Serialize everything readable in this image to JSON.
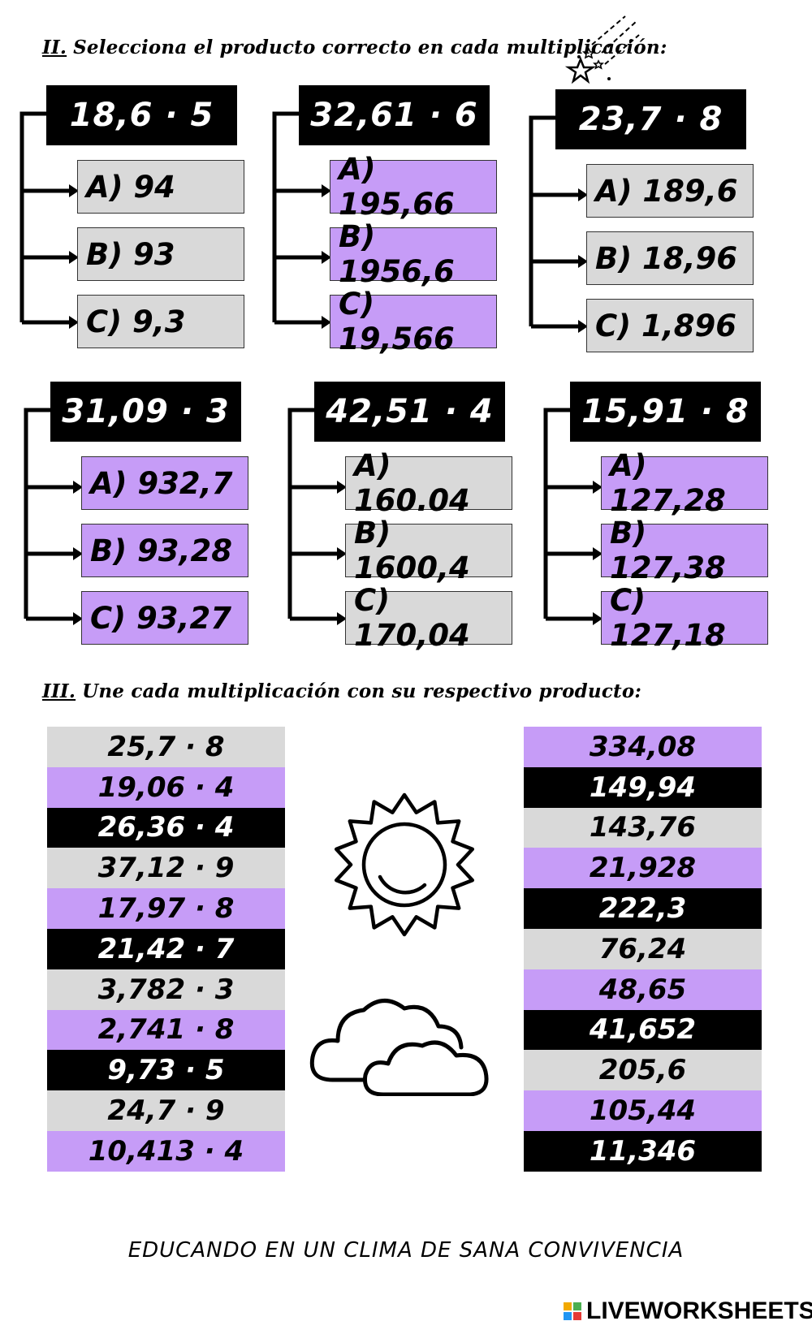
{
  "section2": {
    "number": "II.",
    "title": "Selecciona el producto correcto en cada multiplicación:"
  },
  "groups": [
    {
      "problem": "18,6 · 5",
      "color": "gray",
      "options": [
        "A) 94",
        "B) 93",
        "C) 9,3"
      ]
    },
    {
      "problem": "32,61 · 6",
      "color": "purple",
      "options": [
        "A) 195,66",
        "B) 1956,6",
        "C) 19,566"
      ]
    },
    {
      "problem": "23,7 · 8",
      "color": "gray",
      "options": [
        "A) 189,6",
        "B) 18,96",
        "C) 1,896"
      ]
    },
    {
      "problem": "31,09 · 3",
      "color": "purple",
      "options": [
        "A) 932,7",
        "B) 93,28",
        "C) 93,27"
      ]
    },
    {
      "problem": "42,51 · 4",
      "color": "gray",
      "options": [
        "A) 160.04",
        "B) 1600,4",
        "C) 170,04"
      ]
    },
    {
      "problem": "15,91 · 8",
      "color": "purple",
      "options": [
        "A) 127,28",
        "B) 127,38",
        "C) 127,18"
      ]
    }
  ],
  "section3": {
    "number": "III.",
    "title": "Une cada multiplicación con su respectivo producto:"
  },
  "left_column": [
    {
      "text": "25,7 · 8",
      "color": "gray"
    },
    {
      "text": "19,06 · 4",
      "color": "purple"
    },
    {
      "text": "26,36 · 4",
      "color": "black"
    },
    {
      "text": "37,12 · 9",
      "color": "gray"
    },
    {
      "text": "17,97 · 8",
      "color": "purple"
    },
    {
      "text": "21,42 · 7",
      "color": "black"
    },
    {
      "text": "3,782 · 3",
      "color": "gray"
    },
    {
      "text": "2,741 · 8",
      "color": "purple"
    },
    {
      "text": "9,73 · 5",
      "color": "black"
    },
    {
      "text": "24,7 · 9",
      "color": "gray"
    },
    {
      "text": "10,413 · 4",
      "color": "purple"
    }
  ],
  "right_column": [
    {
      "text": "334,08",
      "color": "purple"
    },
    {
      "text": "149,94",
      "color": "black"
    },
    {
      "text": "143,76",
      "color": "gray"
    },
    {
      "text": "21,928",
      "color": "purple"
    },
    {
      "text": "222,3",
      "color": "black"
    },
    {
      "text": "76,24",
      "color": "gray"
    },
    {
      "text": "48,65",
      "color": "purple"
    },
    {
      "text": "41,652",
      "color": "black"
    },
    {
      "text": "205,6",
      "color": "gray"
    },
    {
      "text": "105,44",
      "color": "purple"
    },
    {
      "text": "11,346",
      "color": "black"
    }
  ],
  "footer": "EDUCANDO EN UN CLIMA DE SANA CONVIVENCIA",
  "brand": "LIVEWORKSHEETS",
  "colors": {
    "purple": "#c69cf7",
    "gray": "#d9d9d9",
    "black": "#000000"
  }
}
